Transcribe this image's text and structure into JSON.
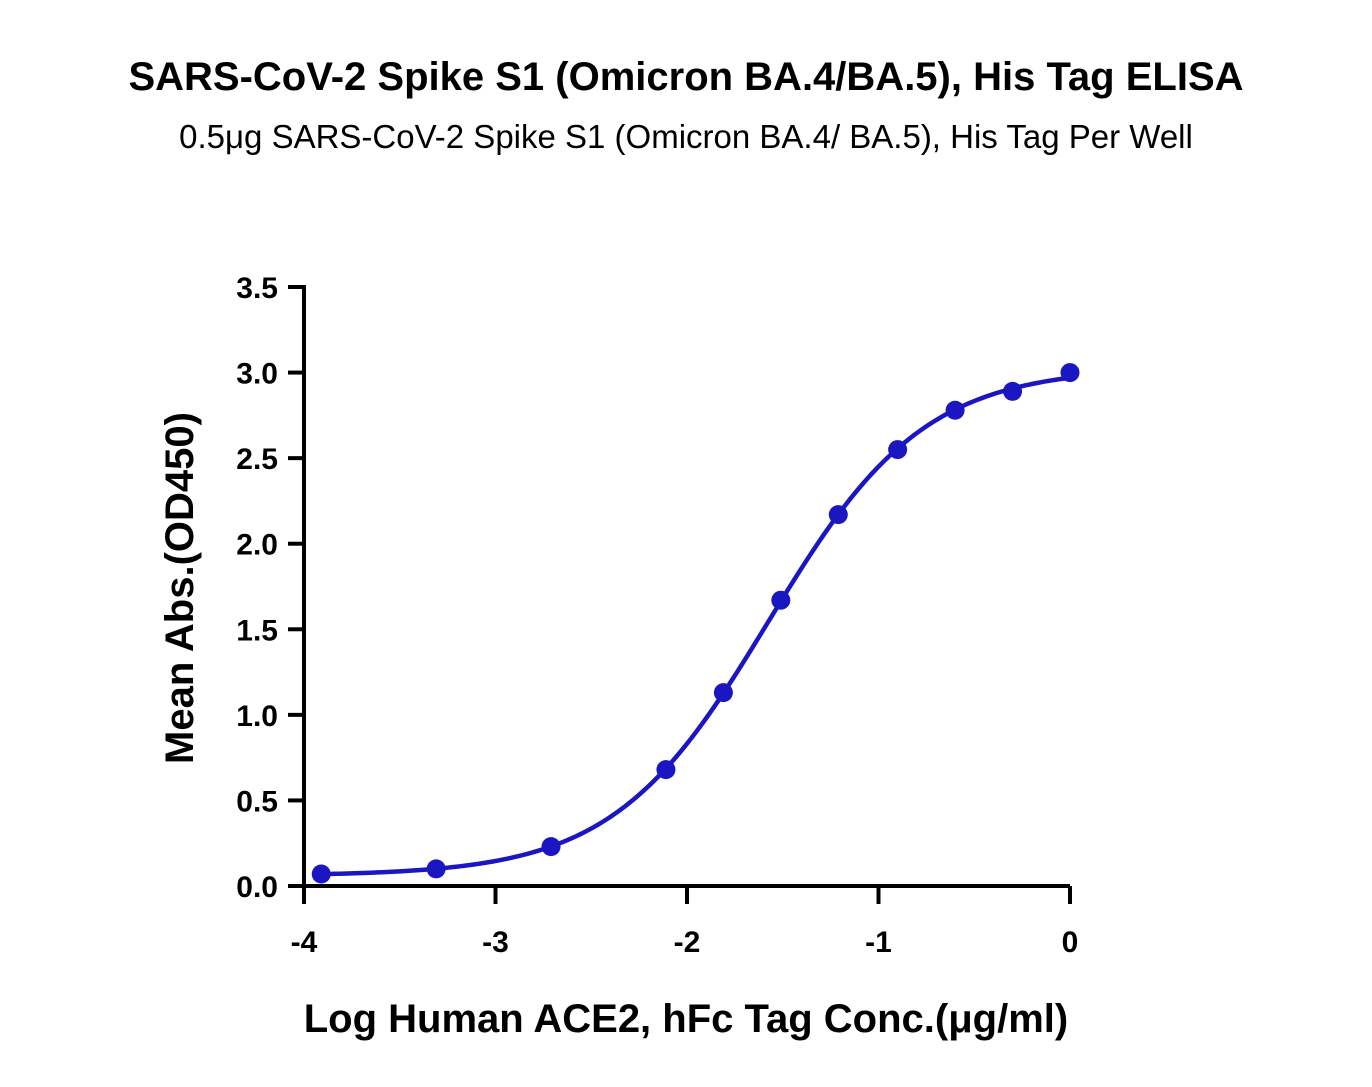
{
  "chart_data": {
    "type": "scatter",
    "title": "SARS-CoV-2 Spike S1 (Omicron BA.4/BA.5), His Tag ELISA",
    "subtitle": "0.5μg SARS-CoV-2 Spike S1 (Omicron BA.4/ BA.5), His Tag Per Well",
    "xlabel": "Log Human ACE2, hFc Tag Conc.(μg/ml)",
    "ylabel": "Mean Abs.(OD450)",
    "xlim": [
      -4,
      0
    ],
    "ylim": [
      0,
      3.5
    ],
    "x_ticks": [
      "-4",
      "-3",
      "-2",
      "-1",
      "0"
    ],
    "y_ticks": [
      "0.0",
      "0.5",
      "1.0",
      "1.5",
      "2.0",
      "2.5",
      "3.0",
      "3.5"
    ],
    "grid": false,
    "legend": "none",
    "series": [
      {
        "color": "#1a17c2",
        "fit": "4PL sigmoidal curve",
        "x": [
          -3.91,
          -3.31,
          -2.71,
          -2.11,
          -1.81,
          -1.51,
          -1.21,
          -0.9,
          -0.6,
          -0.3,
          0.0
        ],
        "y": [
          0.07,
          0.1,
          0.23,
          0.68,
          1.13,
          1.67,
          2.17,
          2.55,
          2.78,
          2.89,
          3.0
        ]
      }
    ]
  }
}
